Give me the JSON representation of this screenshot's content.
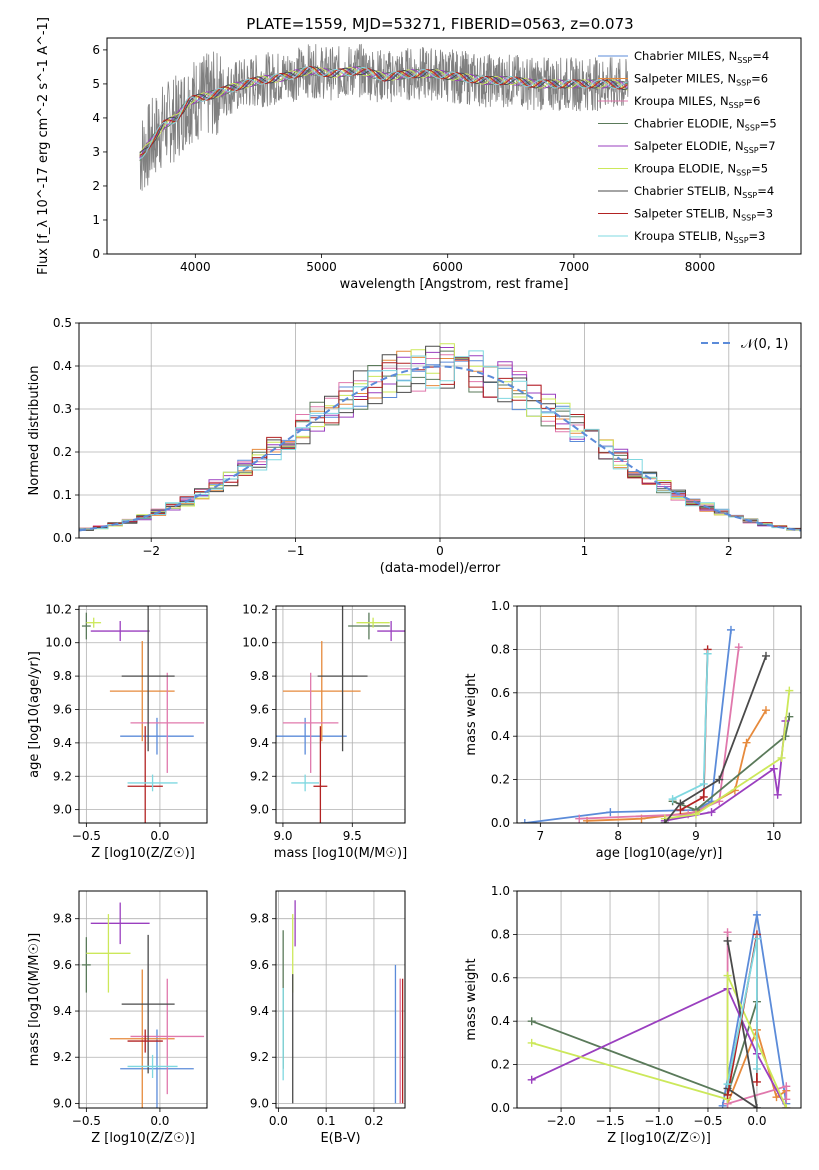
{
  "figure": {
    "title": "PLATE=1559, MJD=53271, FIBERID=0563, z=0.073",
    "colors": {
      "Chabrier MILES": "#5b8bd9",
      "Salpeter MILES": "#e68a3c",
      "Kroupa MILES": "#e078ac",
      "Chabrier ELODIE": "#5a7a5a",
      "Salpeter ELODIE": "#9a3fbf",
      "Kroupa ELODIE": "#cce85a",
      "Chabrier STELIB": "#4a4a4a",
      "Salpeter STELIB": "#b22222",
      "Kroupa STELIB": "#7fd8e0",
      "spectrum": "#808080"
    }
  },
  "chart_data": [
    {
      "id": "spectrum",
      "type": "line",
      "xlabel": "wavelength [Angstrom, rest frame]",
      "ylabel": "Flux [f_λ 10^-17 erg cm^-2 s^-1 A^-1]",
      "xlim": [
        3300,
        8800
      ],
      "ylim": [
        0,
        6.35
      ],
      "xticks": [
        "4000",
        "5000",
        "6000",
        "7000",
        "8000"
      ],
      "yticks": [
        "0",
        "1",
        "2",
        "3",
        "4",
        "5",
        "6"
      ],
      "grid": false,
      "legend_position": "upper-right",
      "legend": [
        {
          "name": "Chabrier MILES",
          "nssp": "4"
        },
        {
          "name": "Salpeter MILES",
          "nssp": "6"
        },
        {
          "name": "Kroupa MILES",
          "nssp": "6"
        },
        {
          "name": "Chabrier ELODIE",
          "nssp": "5"
        },
        {
          "name": "Salpeter ELODIE",
          "nssp": "7"
        },
        {
          "name": "Kroupa ELODIE",
          "nssp": "5"
        },
        {
          "name": "Chabrier STELIB",
          "nssp": "4"
        },
        {
          "name": "Salpeter STELIB",
          "nssp": "3"
        },
        {
          "name": "Kroupa STELIB",
          "nssp": "3"
        }
      ],
      "continuum": {
        "x": [
          3550,
          3650,
          3750,
          3850,
          3950,
          4050,
          4150,
          4300,
          4500,
          4700,
          4900,
          5100,
          5300,
          5500,
          5700,
          5900,
          6100,
          6300,
          6500,
          6700,
          6900,
          7100,
          7300,
          7500
        ],
        "y": [
          2.8,
          3.3,
          3.8,
          4.0,
          4.5,
          4.6,
          4.7,
          4.9,
          5.1,
          5.2,
          5.4,
          5.3,
          5.4,
          5.2,
          5.3,
          5.3,
          5.2,
          5.1,
          5.1,
          5.0,
          5.0,
          5.0,
          5.0,
          4.9
        ]
      }
    },
    {
      "id": "residuals",
      "type": "step",
      "xlabel": "(data-model)/error",
      "ylabel": "Normed distribution",
      "xlim": [
        -2.5,
        2.5
      ],
      "ylim": [
        0,
        0.5
      ],
      "xticks": [
        "−2",
        "−1",
        "0",
        "1",
        "2"
      ],
      "yticks": [
        "0.0",
        "0.1",
        "0.2",
        "0.3",
        "0.4",
        "0.5"
      ],
      "grid": true,
      "legend_position": "upper-right",
      "legend": [
        "𝒩(0, 1)"
      ],
      "normal_mean": 0,
      "normal_sigma": 1,
      "bin_width": 0.1
    },
    {
      "id": "age-vs-Z",
      "type": "scatter-errorbar",
      "xlabel": "Z [log10(Z/Z☉)]",
      "ylabel": "age  [log10(age/yr)]",
      "xlim": [
        -0.55,
        0.32
      ],
      "ylim": [
        8.92,
        10.22
      ],
      "xticks": [
        "−0.5",
        "0.0"
      ],
      "yticks": [
        "9.0",
        "9.2",
        "9.4",
        "9.6",
        "9.8",
        "10.0",
        "10.2"
      ],
      "grid": true,
      "points": [
        {
          "series": "Chabrier MILES",
          "x": -0.02,
          "y": 9.44,
          "xerr": 0.25,
          "yerr": 0.11
        },
        {
          "series": "Salpeter MILES",
          "x": -0.12,
          "y": 9.71,
          "xerr": 0.22,
          "yerr": 0.3
        },
        {
          "series": "Kroupa MILES",
          "x": 0.05,
          "y": 9.52,
          "xerr": 0.25,
          "yerr": 0.3
        },
        {
          "series": "Chabrier ELODIE",
          "x": -0.5,
          "y": 10.1,
          "xerr": 0.03,
          "yerr": 0.08
        },
        {
          "series": "Salpeter ELODIE",
          "x": -0.27,
          "y": 10.07,
          "xerr": 0.2,
          "yerr": 0.06
        },
        {
          "series": "Kroupa ELODIE",
          "x": -0.45,
          "y": 10.12,
          "xerr": 0.05,
          "yerr": 0.03
        },
        {
          "series": "Chabrier STELIB",
          "x": -0.08,
          "y": 9.8,
          "xerr": 0.18,
          "yerr": 0.45
        },
        {
          "series": "Salpeter STELIB",
          "x": -0.1,
          "y": 9.14,
          "xerr": 0.12,
          "yerr": 0.36
        },
        {
          "series": "Kroupa STELIB",
          "x": -0.05,
          "y": 9.16,
          "xerr": 0.17,
          "yerr": 0.05
        }
      ]
    },
    {
      "id": "age-vs-mass",
      "type": "scatter-errorbar",
      "xlabel": "mass [log10(M/M☉)]",
      "ylabel": "",
      "xlim": [
        8.95,
        9.88
      ],
      "ylim": [
        8.92,
        10.22
      ],
      "xticks": [
        "9.0",
        "9.5"
      ],
      "yticks": [
        "9.0",
        "9.2",
        "9.4",
        "9.6",
        "9.8",
        "10.0",
        "10.2"
      ],
      "grid": true,
      "points": [
        {
          "series": "Chabrier MILES",
          "x": 9.16,
          "y": 9.44,
          "xerr": 0.3,
          "yerr": 0.11
        },
        {
          "series": "Salpeter MILES",
          "x": 9.28,
          "y": 9.71,
          "xerr": 0.28,
          "yerr": 0.3
        },
        {
          "series": "Kroupa MILES",
          "x": 9.2,
          "y": 9.52,
          "xerr": 0.2,
          "yerr": 0.3
        },
        {
          "series": "Chabrier ELODIE",
          "x": 9.62,
          "y": 10.1,
          "xerr": 0.15,
          "yerr": 0.08
        },
        {
          "series": "Salpeter ELODIE",
          "x": 9.78,
          "y": 10.07,
          "xerr": 0.1,
          "yerr": 0.06
        },
        {
          "series": "Kroupa ELODIE",
          "x": 9.65,
          "y": 10.12,
          "xerr": 0.12,
          "yerr": 0.03
        },
        {
          "series": "Chabrier STELIB",
          "x": 9.43,
          "y": 9.8,
          "xerr": 0.18,
          "yerr": 0.45
        },
        {
          "series": "Salpeter STELIB",
          "x": 9.27,
          "y": 9.14,
          "xerr": 0.05,
          "yerr": 0.36
        },
        {
          "series": "Kroupa STELIB",
          "x": 9.16,
          "y": 9.16,
          "xerr": 0.1,
          "yerr": 0.05
        }
      ]
    },
    {
      "id": "massweight-vs-age",
      "type": "line",
      "xlabel": "age  [log10(age/yr)]",
      "ylabel": "mass weight",
      "xlim": [
        6.7,
        10.35
      ],
      "ylim": [
        0,
        1.0
      ],
      "xticks": [
        "7",
        "8",
        "9",
        "10"
      ],
      "yticks": [
        "0.0",
        "0.2",
        "0.4",
        "0.6",
        "0.8",
        "1.0"
      ],
      "grid": true,
      "series": [
        {
          "name": "Chabrier MILES",
          "x": [
            6.8,
            7.9,
            9.0,
            9.2,
            9.45
          ],
          "y": [
            0.0,
            0.05,
            0.06,
            0.1,
            0.89
          ]
        },
        {
          "name": "Salpeter MILES",
          "x": [
            7.6,
            8.3,
            9.0,
            9.5,
            9.65,
            9.9
          ],
          "y": [
            0.01,
            0.02,
            0.05,
            0.15,
            0.37,
            0.52
          ]
        },
        {
          "name": "Kroupa MILES",
          "x": [
            7.5,
            8.9,
            9.3,
            9.55
          ],
          "y": [
            0.02,
            0.04,
            0.1,
            0.81
          ]
        },
        {
          "name": "Chabrier ELODIE",
          "x": [
            8.7,
            9.0,
            10.15,
            10.2
          ],
          "y": [
            0.1,
            0.06,
            0.4,
            0.49
          ]
        },
        {
          "name": "Salpeter ELODIE",
          "x": [
            8.6,
            9.2,
            10.0,
            10.05,
            10.15
          ],
          "y": [
            0.01,
            0.05,
            0.25,
            0.13,
            0.47
          ]
        },
        {
          "name": "Kroupa ELODIE",
          "x": [
            8.6,
            9.0,
            10.1,
            10.2
          ],
          "y": [
            0.02,
            0.04,
            0.3,
            0.61
          ]
        },
        {
          "name": "Chabrier STELIB",
          "x": [
            8.6,
            8.8,
            9.3,
            9.9
          ],
          "y": [
            0.0,
            0.09,
            0.2,
            0.77
          ]
        },
        {
          "name": "Salpeter STELIB",
          "x": [
            8.8,
            9.1,
            9.15
          ],
          "y": [
            0.06,
            0.12,
            0.8
          ]
        },
        {
          "name": "Kroupa STELIB",
          "x": [
            8.7,
            9.1,
            9.15
          ],
          "y": [
            0.11,
            0.18,
            0.78
          ]
        }
      ]
    },
    {
      "id": "mass-vs-Z",
      "type": "scatter-errorbar",
      "xlabel": "Z [log10(Z/Z☉)]",
      "ylabel": "mass [log10(M/M☉)]",
      "xlim": [
        -0.55,
        0.32
      ],
      "ylim": [
        8.98,
        9.92
      ],
      "xticks": [
        "−0.5",
        "0.0"
      ],
      "yticks": [
        "9.0",
        "9.2",
        "9.4",
        "9.6",
        "9.8"
      ],
      "grid": true,
      "points": [
        {
          "series": "Chabrier MILES",
          "x": -0.02,
          "y": 9.15,
          "xerr": 0.25,
          "yerr": 0.17
        },
        {
          "series": "Salpeter MILES",
          "x": -0.12,
          "y": 9.28,
          "xerr": 0.22,
          "yerr": 0.3
        },
        {
          "series": "Kroupa MILES",
          "x": 0.05,
          "y": 9.29,
          "xerr": 0.25,
          "yerr": 0.25
        },
        {
          "series": "Chabrier ELODIE",
          "x": -0.5,
          "y": 9.6,
          "xerr": 0.03,
          "yerr": 0.12
        },
        {
          "series": "Salpeter ELODIE",
          "x": -0.27,
          "y": 9.78,
          "xerr": 0.2,
          "yerr": 0.09
        },
        {
          "series": "Kroupa ELODIE",
          "x": -0.35,
          "y": 9.65,
          "xerr": 0.15,
          "yerr": 0.17
        },
        {
          "series": "Chabrier STELIB",
          "x": -0.08,
          "y": 9.43,
          "xerr": 0.18,
          "yerr": 0.3
        },
        {
          "series": "Salpeter STELIB",
          "x": -0.1,
          "y": 9.27,
          "xerr": 0.12,
          "yerr": 0.05
        },
        {
          "series": "Kroupa STELIB",
          "x": -0.05,
          "y": 9.16,
          "xerr": 0.17,
          "yerr": 0.05
        }
      ]
    },
    {
      "id": "mass-vs-EBV",
      "type": "scatter-errorbar",
      "xlabel": "E(B-V)",
      "ylabel": "",
      "xlim": [
        -0.005,
        0.265
      ],
      "ylim": [
        8.98,
        9.92
      ],
      "xticks": [
        "0.0",
        "0.1",
        "0.2"
      ],
      "yticks": [
        "9.0",
        "9.2",
        "9.4",
        "9.6",
        "9.8"
      ],
      "grid": true,
      "points": [
        {
          "series": "Chabrier MILES",
          "x": 0.245,
          "y": 9.3,
          "xerr": 0,
          "yerr": 0.3
        },
        {
          "series": "Salpeter MILES",
          "x": 0.255,
          "y": 9.27,
          "xerr": 0,
          "yerr": 0.27
        },
        {
          "series": "Kroupa MILES",
          "x": 0.255,
          "y": 9.27,
          "xerr": 0,
          "yerr": 0.27
        },
        {
          "series": "Chabrier ELODIE",
          "x": 0.01,
          "y": 9.45,
          "xerr": 0,
          "yerr": 0.3
        },
        {
          "series": "Salpeter ELODIE",
          "x": 0.035,
          "y": 9.78,
          "xerr": 0,
          "yerr": 0.1
        },
        {
          "series": "Kroupa ELODIE",
          "x": 0.03,
          "y": 9.65,
          "xerr": 0,
          "yerr": 0.17
        },
        {
          "series": "Chabrier STELIB",
          "x": 0.03,
          "y": 9.28,
          "xerr": 0,
          "yerr": 0.28
        },
        {
          "series": "Salpeter STELIB",
          "x": 0.26,
          "y": 9.27,
          "xerr": 0,
          "yerr": 0.27
        },
        {
          "series": "Kroupa STELIB",
          "x": 0.01,
          "y": 9.3,
          "xerr": 0,
          "yerr": 0.2
        }
      ]
    },
    {
      "id": "massweight-vs-Z",
      "type": "line",
      "xlabel": "Z [log10(Z/Z☉)]",
      "ylabel": "mass weight",
      "xlim": [
        -2.45,
        0.45
      ],
      "ylim": [
        0,
        1.0
      ],
      "xticks": [
        "−2.0",
        "−1.5",
        "−1.0",
        "−0.5",
        "0.0"
      ],
      "yticks": [
        "0.0",
        "0.2",
        "0.4",
        "0.6",
        "0.8",
        "1.0"
      ],
      "grid": true,
      "series": [
        {
          "name": "Chabrier MILES",
          "x": [
            -0.35,
            0.0,
            0.3
          ],
          "y": [
            0.01,
            0.89,
            0.02
          ]
        },
        {
          "name": "Salpeter MILES",
          "x": [
            -0.3,
            0.0,
            0.2,
            0.3
          ],
          "y": [
            0.02,
            0.36,
            0.05,
            0.08
          ]
        },
        {
          "name": "Kroupa MILES",
          "x": [
            -0.3,
            -0.3,
            0.3,
            0.3
          ],
          "y": [
            0.81,
            0.02,
            0.1,
            0.04
          ]
        },
        {
          "name": "Chabrier ELODIE",
          "x": [
            -2.3,
            -0.3,
            0.0
          ],
          "y": [
            0.4,
            0.06,
            0.49
          ]
        },
        {
          "name": "Salpeter ELODIE",
          "x": [
            -2.3,
            -0.3,
            0.0,
            0.3
          ],
          "y": [
            0.13,
            0.55,
            0.25,
            0.0
          ]
        },
        {
          "name": "Kroupa ELODIE",
          "x": [
            -2.3,
            -0.3,
            -0.3,
            0.3
          ],
          "y": [
            0.3,
            0.04,
            0.61,
            0.0
          ]
        },
        {
          "name": "Chabrier STELIB",
          "x": [
            -0.3,
            0.0,
            -0.3
          ],
          "y": [
            0.77,
            0.0,
            0.09
          ]
        },
        {
          "name": "Salpeter STELIB",
          "x": [
            -0.3,
            0.0,
            0.0
          ],
          "y": [
            0.06,
            0.8,
            0.12
          ]
        },
        {
          "name": "Kroupa STELIB",
          "x": [
            -0.3,
            0.0,
            0.0
          ],
          "y": [
            0.11,
            0.78,
            0.18
          ]
        }
      ]
    }
  ]
}
